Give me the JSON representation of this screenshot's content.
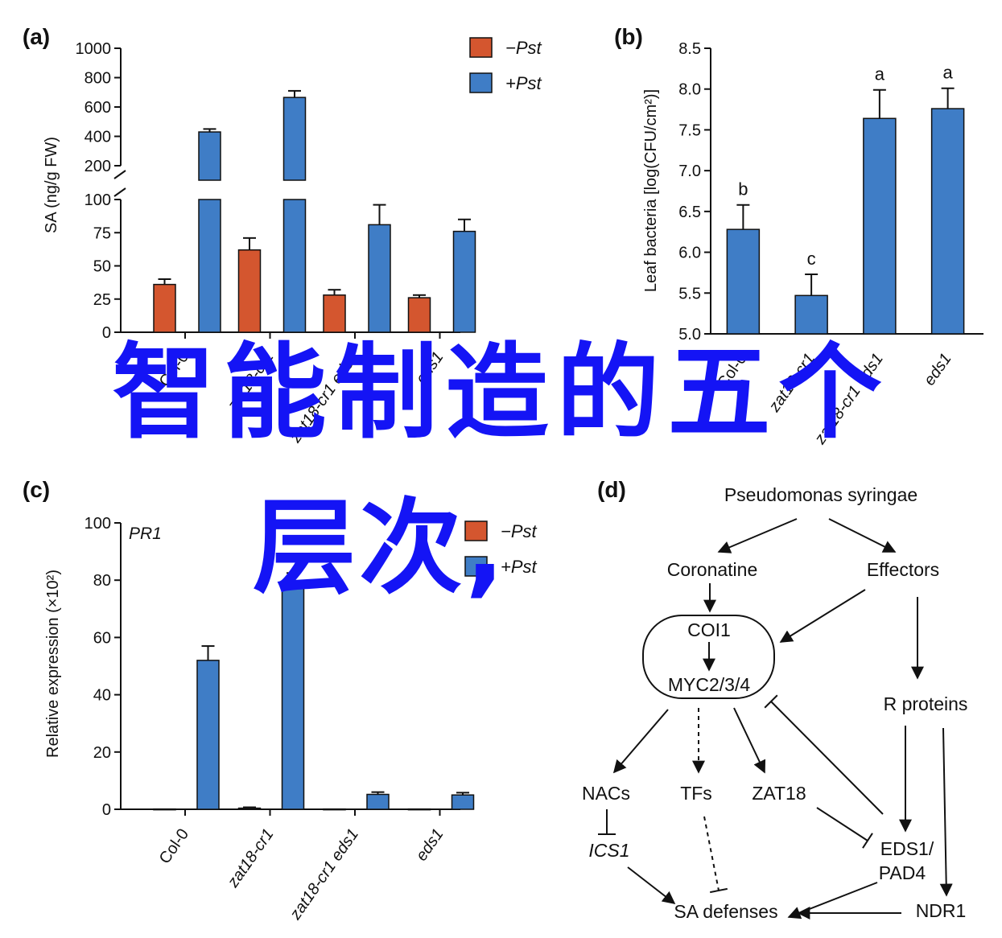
{
  "overlay": {
    "line1": "智能制造的五个",
    "line2": "层次,"
  },
  "colors": {
    "red": "#d4562f",
    "blue": "#3f7dc6",
    "axis": "#111111",
    "overlay": "#1414f5"
  },
  "chart_data": [
    {
      "panel": "(a)",
      "type": "bar",
      "ylabel": "SA (ng/g FW)",
      "categories": [
        "Col-0",
        "zat18-cr1",
        "zat18-cr1 eds1",
        "eds1"
      ],
      "series": [
        {
          "name": "−Pst",
          "color": "#d4562f",
          "values": [
            36,
            62,
            28,
            26
          ],
          "errors": [
            4,
            9,
            4,
            2
          ]
        },
        {
          "name": "+Pst",
          "color": "#3f7dc6",
          "values": [
            430,
            665,
            81,
            76
          ],
          "errors": [
            20,
            45,
            15,
            9
          ]
        }
      ],
      "y_axis_broken": true,
      "lower_range": [
        0,
        100
      ],
      "upper_range": [
        200,
        1000
      ],
      "lower_ticks": [
        "0",
        "25",
        "50",
        "75",
        "100"
      ],
      "upper_ticks": [
        "200",
        "400",
        "600",
        "800",
        "1000"
      ],
      "legend": "top-right"
    },
    {
      "panel": "(b)",
      "type": "bar",
      "ylabel": "Leaf bacteria [log(CFU/cm²)]",
      "categories": [
        "Col-0",
        "zat18-cr1",
        "zat18-cr1 eds1",
        "eds1"
      ],
      "series": [
        {
          "color": "#3f7dc6",
          "values": [
            6.28,
            5.47,
            7.64,
            7.76
          ],
          "errors": [
            0.3,
            0.26,
            0.35,
            0.25
          ]
        }
      ],
      "letters": [
        "b",
        "c",
        "a",
        "a"
      ],
      "ylim": [
        5.0,
        8.5
      ],
      "ticks": [
        "5.0",
        "5.5",
        "6.0",
        "6.5",
        "7.0",
        "7.5",
        "8.0",
        "8.5"
      ]
    },
    {
      "panel": "(c)",
      "type": "bar",
      "title": "PR1",
      "ylabel": "Relative expression (×10²)",
      "categories": [
        "Col-0",
        "zat18-cr1",
        "zat18-cr1 eds1",
        "eds1"
      ],
      "series": [
        {
          "name": "−Pst",
          "color": "#d4562f",
          "values": [
            0.1,
            0.4,
            0.1,
            0.1
          ],
          "errors": [
            0,
            0.3,
            0,
            0
          ]
        },
        {
          "name": "+Pst",
          "color": "#3f7dc6",
          "values": [
            52,
            79.3,
            5.2,
            5.0
          ],
          "errors": [
            5,
            3.2,
            0.8,
            0.8
          ]
        }
      ],
      "ylim": [
        0,
        100
      ],
      "ticks": [
        "0",
        "20",
        "40",
        "60",
        "80",
        "100"
      ],
      "legend": "top-right"
    }
  ],
  "diagram": {
    "panel": "(d)",
    "nodes": {
      "pst": "Pseudomonas syringae",
      "coronatine": "Coronatine",
      "effectors": "Effectors",
      "coi1": "COI1",
      "myc": "MYC2/3/4",
      "rproteins": "R proteins",
      "nacs": "NACs",
      "tfs": "TFs",
      "zat18": "ZAT18",
      "ics1": "ICS1",
      "eds1": "EDS1/",
      "pad4": "PAD4",
      "sadef": "SA defenses",
      "ndr1": "NDR1"
    }
  }
}
